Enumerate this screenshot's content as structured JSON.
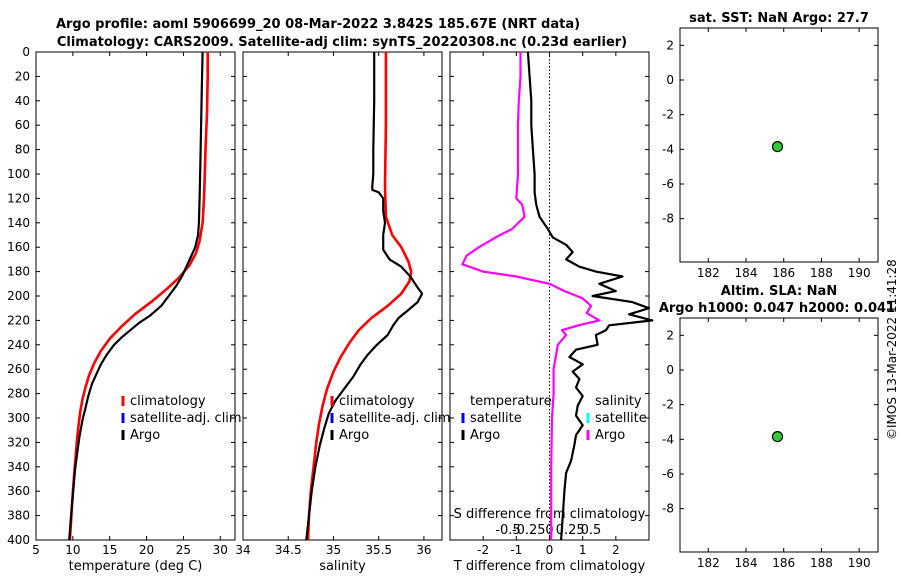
{
  "title_line1": "Argo profile: aoml 5906699_20 08-Mar-2022 3.842S 185.67E (NRT data)",
  "title_line2": "Climatology: CARS2009. Satellite-adj clim: synTS_20220308.nc (0.23d earlier)",
  "timestamp": "©IMOS 13-Mar-2022 11:41:28",
  "colors": {
    "climatology": "#ff0000",
    "satellite": "#0000ff",
    "satellite_s": "#00ffff",
    "argo": "#000000",
    "salinity_diff": "#ff00ff",
    "marker": "#33cc33"
  },
  "legend_profile": {
    "climatology": "climatology",
    "satellite": "satellite-adj. clim",
    "argo": "Argo"
  },
  "legend_diff": {
    "temp_header": "temperature",
    "sal_header": "salinity",
    "satellite": "satellite",
    "argo": "Argo"
  },
  "chart_data": [
    {
      "id": "temperature",
      "type": "line",
      "title": "",
      "xlabel": "temperature (deg C)",
      "ylabel": "",
      "xlim": [
        5,
        32
      ],
      "ylim": [
        400,
        0
      ],
      "xticks": [
        "5",
        "10",
        "15",
        "20",
        "25",
        "30"
      ],
      "yticks": [
        "0",
        "20",
        "40",
        "60",
        "80",
        "100",
        "120",
        "140",
        "160",
        "180",
        "200",
        "220",
        "240",
        "260",
        "280",
        "300",
        "320",
        "340",
        "360",
        "380",
        "400"
      ],
      "series": [
        {
          "name": "climatology",
          "color_key": "climatology",
          "width": 2.6,
          "points": [
            [
              28.3,
              0
            ],
            [
              28.3,
              20
            ],
            [
              28.2,
              50
            ],
            [
              28.0,
              80
            ],
            [
              27.9,
              100
            ],
            [
              27.8,
              120
            ],
            [
              27.6,
              140
            ],
            [
              27.2,
              155
            ],
            [
              26.7,
              165
            ],
            [
              25.8,
              175
            ],
            [
              24.4,
              185
            ],
            [
              22.6,
              195
            ],
            [
              20.6,
              205
            ],
            [
              18.4,
              215
            ],
            [
              16.6,
              225
            ],
            [
              15.0,
              235
            ],
            [
              13.8,
              245
            ],
            [
              12.9,
              255
            ],
            [
              12.2,
              265
            ],
            [
              11.7,
              275
            ],
            [
              11.3,
              285
            ],
            [
              11.0,
              295
            ],
            [
              10.8,
              305
            ],
            [
              10.6,
              315
            ],
            [
              10.4,
              330
            ],
            [
              10.2,
              345
            ],
            [
              10.0,
              360
            ],
            [
              9.8,
              380
            ],
            [
              9.6,
              400
            ]
          ]
        },
        {
          "name": "Argo",
          "color_key": "argo",
          "width": 2.2,
          "points": [
            [
              27.6,
              0
            ],
            [
              27.5,
              30
            ],
            [
              27.4,
              60
            ],
            [
              27.3,
              90
            ],
            [
              27.2,
              120
            ],
            [
              27.1,
              140
            ],
            [
              27.0,
              150
            ],
            [
              26.6,
              160
            ],
            [
              26.0,
              168
            ],
            [
              25.4,
              176
            ],
            [
              24.8,
              184
            ],
            [
              24.0,
              192
            ],
            [
              23.0,
              200
            ],
            [
              22.0,
              208
            ],
            [
              20.5,
              216
            ],
            [
              19.0,
              222
            ],
            [
              17.8,
              228
            ],
            [
              16.6,
              234
            ],
            [
              15.6,
              240
            ],
            [
              14.6,
              248
            ],
            [
              13.8,
              256
            ],
            [
              13.2,
              264
            ],
            [
              12.6,
              272
            ],
            [
              12.1,
              282
            ],
            [
              11.7,
              292
            ],
            [
              11.3,
              302
            ],
            [
              10.9,
              315
            ],
            [
              10.6,
              328
            ],
            [
              10.3,
              342
            ],
            [
              10.1,
              356
            ],
            [
              9.9,
              370
            ],
            [
              9.7,
              385
            ],
            [
              9.5,
              400
            ]
          ]
        }
      ]
    },
    {
      "id": "salinity",
      "type": "line",
      "title": "",
      "xlabel": "salinity",
      "ylabel": "",
      "xlim": [
        34,
        36.2
      ],
      "ylim": [
        400,
        0
      ],
      "xticks": [
        "34",
        "34.5",
        "35",
        "35.5",
        "36"
      ],
      "yticks": [],
      "series": [
        {
          "name": "climatology",
          "color_key": "climatology",
          "width": 2.6,
          "points": [
            [
              35.58,
              0
            ],
            [
              35.58,
              60
            ],
            [
              35.57,
              110
            ],
            [
              35.58,
              135
            ],
            [
              35.65,
              150
            ],
            [
              35.75,
              160
            ],
            [
              35.83,
              172
            ],
            [
              35.86,
              180
            ],
            [
              35.84,
              188
            ],
            [
              35.75,
              198
            ],
            [
              35.6,
              208
            ],
            [
              35.42,
              218
            ],
            [
              35.28,
              228
            ],
            [
              35.18,
              238
            ],
            [
              35.08,
              250
            ],
            [
              35.0,
              262
            ],
            [
              34.93,
              276
            ],
            [
              34.88,
              290
            ],
            [
              34.84,
              305
            ],
            [
              34.81,
              320
            ],
            [
              34.78,
              340
            ],
            [
              34.75,
              360
            ],
            [
              34.73,
              380
            ],
            [
              34.72,
              400
            ]
          ]
        },
        {
          "name": "Argo",
          "color_key": "argo",
          "width": 2.2,
          "points": [
            [
              35.45,
              0
            ],
            [
              35.45,
              40
            ],
            [
              35.44,
              80
            ],
            [
              35.44,
              100
            ],
            [
              35.43,
              110
            ],
            [
              35.43,
              113
            ],
            [
              35.5,
              115
            ],
            [
              35.55,
              120
            ],
            [
              35.55,
              130
            ],
            [
              35.57,
              140
            ],
            [
              35.55,
              150
            ],
            [
              35.55,
              162
            ],
            [
              35.62,
              170
            ],
            [
              35.75,
              176
            ],
            [
              35.85,
              184
            ],
            [
              35.93,
              193
            ],
            [
              35.98,
              198
            ],
            [
              35.93,
              205
            ],
            [
              35.82,
              212
            ],
            [
              35.72,
              218
            ],
            [
              35.66,
              224
            ],
            [
              35.6,
              232
            ],
            [
              35.48,
              240
            ],
            [
              35.38,
              248
            ],
            [
              35.3,
              256
            ],
            [
              35.22,
              266
            ],
            [
              35.12,
              276
            ],
            [
              35.02,
              286
            ],
            [
              34.95,
              296
            ],
            [
              34.9,
              308
            ],
            [
              34.85,
              322
            ],
            [
              34.8,
              340
            ],
            [
              34.76,
              360
            ],
            [
              34.73,
              380
            ],
            [
              34.7,
              400
            ]
          ]
        }
      ]
    },
    {
      "id": "difference",
      "type": "line",
      "title": "",
      "xlabel": "T difference from climatology",
      "x2label": "S difference from climatology",
      "xlim": [
        -3,
        3
      ],
      "x2lim": [
        -1.2,
        1.2
      ],
      "ylim": [
        400,
        0
      ],
      "xticks": [
        "-2",
        "-1",
        "0",
        "1",
        "2"
      ],
      "x2ticks": [
        "-0.5",
        "-0.25",
        "0",
        "0.25",
        "0.5"
      ],
      "yticks": [],
      "series": [
        {
          "name": "Argo T",
          "color_key": "argo",
          "width": 2.2,
          "axis": "T",
          "points": [
            [
              -0.65,
              0
            ],
            [
              -0.6,
              20
            ],
            [
              -0.55,
              40
            ],
            [
              -0.55,
              60
            ],
            [
              -0.5,
              80
            ],
            [
              -0.45,
              100
            ],
            [
              -0.45,
              115
            ],
            [
              -0.4,
              125
            ],
            [
              -0.3,
              135
            ],
            [
              -0.05,
              145
            ],
            [
              0.1,
              152
            ],
            [
              0.5,
              158
            ],
            [
              0.7,
              164
            ],
            [
              0.5,
              170
            ],
            [
              0.9,
              176
            ],
            [
              1.4,
              180
            ],
            [
              2.2,
              184
            ],
            [
              1.5,
              190
            ],
            [
              2.0,
              196
            ],
            [
              1.3,
              200
            ],
            [
              2.5,
              205
            ],
            [
              3.0,
              210
            ],
            [
              2.4,
              215
            ],
            [
              3.1,
              220
            ],
            [
              1.8,
              224
            ],
            [
              1.7,
              228
            ],
            [
              1.4,
              232
            ],
            [
              1.45,
              240
            ],
            [
              0.8,
              244
            ],
            [
              0.6,
              250
            ],
            [
              1.0,
              256
            ],
            [
              0.7,
              262
            ],
            [
              0.9,
              268
            ],
            [
              0.8,
              275
            ],
            [
              1.0,
              282
            ],
            [
              0.85,
              290
            ],
            [
              0.8,
              298
            ],
            [
              1.0,
              306
            ],
            [
              0.8,
              314
            ],
            [
              0.75,
              322
            ],
            [
              0.65,
              335
            ],
            [
              0.5,
              345
            ],
            [
              0.45,
              360
            ],
            [
              0.4,
              380
            ],
            [
              0.35,
              400
            ]
          ]
        },
        {
          "name": "Argo S",
          "color_key": "salinity_diff",
          "width": 2.2,
          "axis": "S",
          "points": [
            [
              -0.35,
              0
            ],
            [
              -0.35,
              20
            ],
            [
              -0.37,
              40
            ],
            [
              -0.38,
              60
            ],
            [
              -0.38,
              80
            ],
            [
              -0.38,
              100
            ],
            [
              -0.4,
              120
            ],
            [
              -0.33,
              125
            ],
            [
              -0.3,
              135
            ],
            [
              -0.45,
              145
            ],
            [
              -0.65,
              152
            ],
            [
              -0.85,
              160
            ],
            [
              -1.0,
              167
            ],
            [
              -1.05,
              174
            ],
            [
              -0.8,
              180
            ],
            [
              -0.4,
              184
            ],
            [
              0.0,
              190
            ],
            [
              0.18,
              196
            ],
            [
              0.4,
              202
            ],
            [
              0.5,
              208
            ],
            [
              0.45,
              214
            ],
            [
              0.6,
              220
            ],
            [
              0.35,
              224
            ],
            [
              0.15,
              228
            ],
            [
              0.2,
              232
            ],
            [
              0.1,
              240
            ],
            [
              0.05,
              260
            ],
            [
              0.05,
              280
            ],
            [
              0.03,
              300
            ],
            [
              0.02,
              340
            ],
            [
              0.02,
              380
            ],
            [
              0.02,
              400
            ]
          ]
        }
      ]
    },
    {
      "id": "sst",
      "type": "scatter",
      "title": "sat. SST: NaN Argo: 27.7",
      "xlim": [
        180.5,
        191
      ],
      "ylim": [
        -10.5,
        3
      ],
      "xticks": [
        "182",
        "184",
        "186",
        "188",
        "190"
      ],
      "yticks": [
        "2",
        "0",
        "-2",
        "-4",
        "-6",
        "-8"
      ],
      "points": [
        [
          185.67,
          -3.842
        ]
      ]
    },
    {
      "id": "sla",
      "type": "scatter",
      "title": "Altim. SLA: NaN",
      "title2": "Argo h1000: 0.047 h2000: 0.041",
      "xlim": [
        180.5,
        191
      ],
      "ylim": [
        -10.5,
        3
      ],
      "xticks": [
        "182",
        "184",
        "186",
        "188",
        "190"
      ],
      "yticks": [
        "2",
        "0",
        "-2",
        "-4",
        "-6",
        "-8"
      ],
      "points": [
        [
          185.67,
          -3.842
        ]
      ]
    }
  ]
}
